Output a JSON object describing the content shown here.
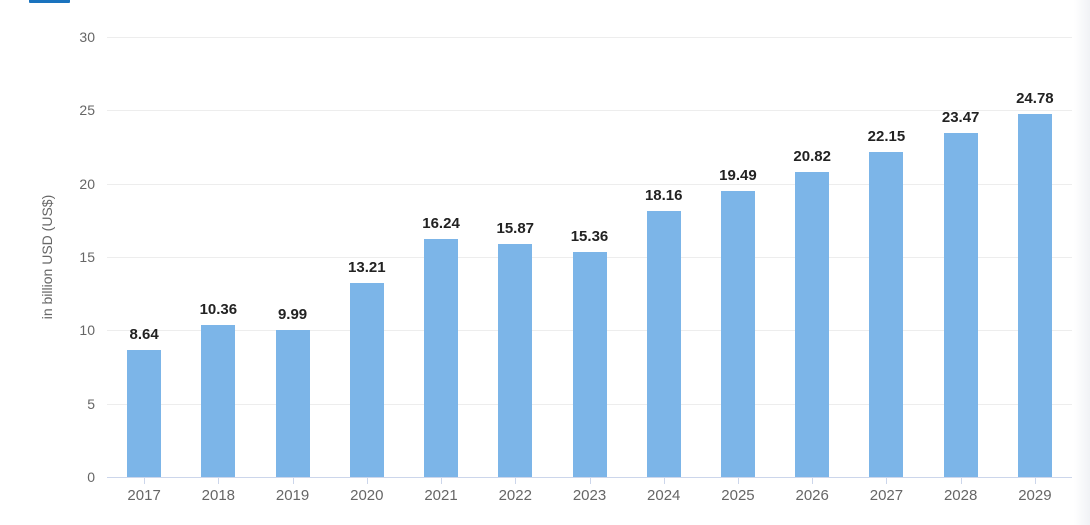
{
  "tab_indicator": {
    "color": "#1a73be"
  },
  "chart_data": {
    "type": "bar",
    "title": "",
    "categories": [
      "2017",
      "2018",
      "2019",
      "2020",
      "2021",
      "2022",
      "2023",
      "2024",
      "2025",
      "2026",
      "2027",
      "2028",
      "2029"
    ],
    "values": [
      8.64,
      10.36,
      9.99,
      13.21,
      16.24,
      15.87,
      15.36,
      18.16,
      19.49,
      20.82,
      22.15,
      23.47,
      24.78
    ],
    "value_labels": [
      "8.64",
      "10.36",
      "9.99",
      "13.21",
      "16.24",
      "15.87",
      "15.36",
      "18.16",
      "19.49",
      "20.82",
      "22.15",
      "23.47",
      "24.78"
    ],
    "xlabel": "",
    "ylabel": "in billion USD (US$)",
    "ylim": [
      0,
      30
    ],
    "yticks": [
      0,
      5,
      10,
      15,
      20,
      25,
      30
    ],
    "grid": true,
    "legend": "none",
    "bar_color": "#7cb5e8",
    "value_label_color": "#222222",
    "axis_text_color": "#666666",
    "gridline_color": "#ededed",
    "baseline_color": "#ccd6eb",
    "tick_color": "#ccd6eb"
  }
}
